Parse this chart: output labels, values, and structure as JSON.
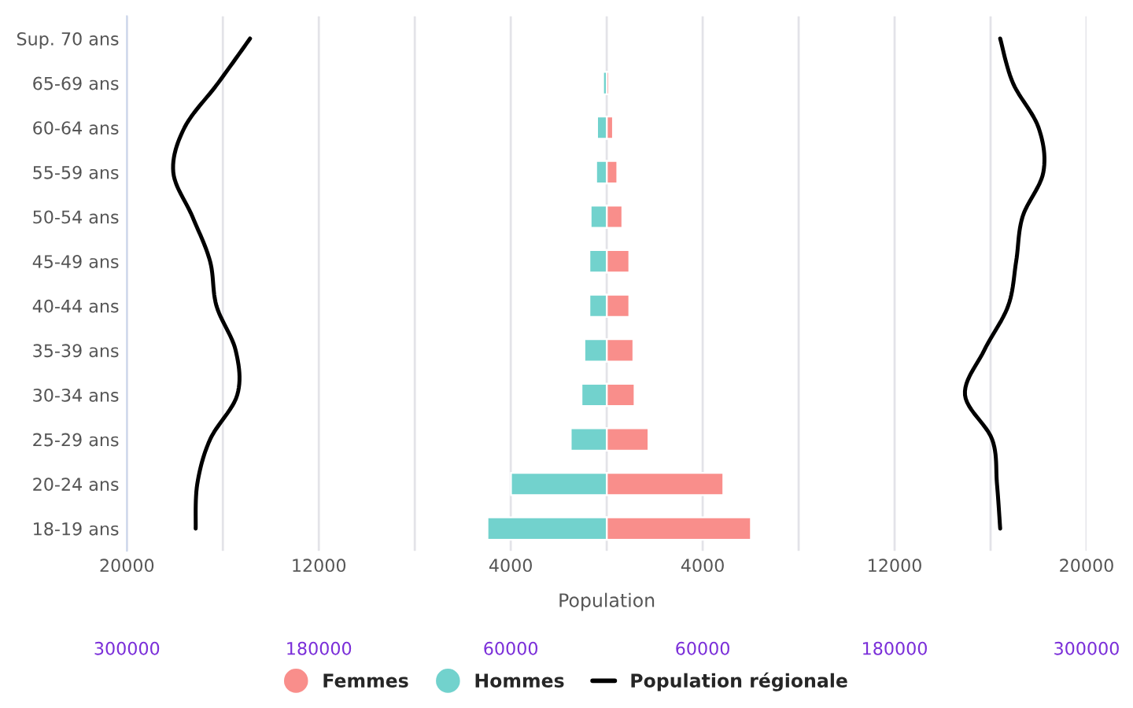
{
  "chart_data": {
    "type": "bar",
    "orientation": "horizontal",
    "xlabel": "Population",
    "grid": "x",
    "legend": "bottom",
    "stacked": true,
    "categories": [
      "Sup. 70 ans",
      "65-69 ans",
      "60-64 ans",
      "55-59 ans",
      "50-54 ans",
      "45-49 ans",
      "40-44 ans",
      "35-39 ans",
      "30-34 ans",
      "25-29 ans",
      "20-24 ans",
      "18-19 ans"
    ],
    "series": [
      {
        "name": "Femmes",
        "color": "#f98e8b",
        "values": [
          null,
          100,
          260,
          440,
          650,
          940,
          940,
          1110,
          1160,
          1740,
          4860,
          6010
        ]
      },
      {
        "name": "Hommes",
        "color": "#72d2cd",
        "values": [
          null,
          -150,
          -400,
          -440,
          -670,
          -720,
          -720,
          -930,
          -1050,
          -1500,
          -3990,
          -4970
        ]
      },
      {
        "name": "Population régionale",
        "type": "line",
        "axis": "x2",
        "color": "#000000",
        "values": [
          -223000,
          -243000,
          -264000,
          -271000,
          -259000,
          -248000,
          -244000,
          -232000,
          -231000,
          -248000,
          -256000,
          -257000
        ]
      },
      {
        "type": "line",
        "axis": "x2",
        "color": "#000000",
        "values": [
          246000,
          254000,
          270000,
          273000,
          260000,
          256000,
          251000,
          236000,
          224000,
          241000,
          244000,
          246000
        ]
      }
    ],
    "xlim": [
      -20000,
      20000
    ],
    "xticks": [
      {
        "value": -20000,
        "label": "20000"
      },
      {
        "value": -16000,
        "label": null
      },
      {
        "value": -12000,
        "label": "12000"
      },
      {
        "value": -8000,
        "label": null
      },
      {
        "value": -4000,
        "label": "4000"
      },
      {
        "value": 0,
        "label": null
      },
      4000,
      {
        "value": 8000,
        "label": null
      },
      12000,
      {
        "value": 16000,
        "label": null
      },
      20000
    ],
    "x2lim": [
      -300000,
      300000
    ],
    "x2ticks": [
      {
        "value": -300000,
        "label": "300000"
      },
      {
        "value": -180000,
        "label": "180000"
      },
      {
        "value": -60000,
        "label": "60000"
      },
      60000,
      180000,
      300000
    ]
  }
}
